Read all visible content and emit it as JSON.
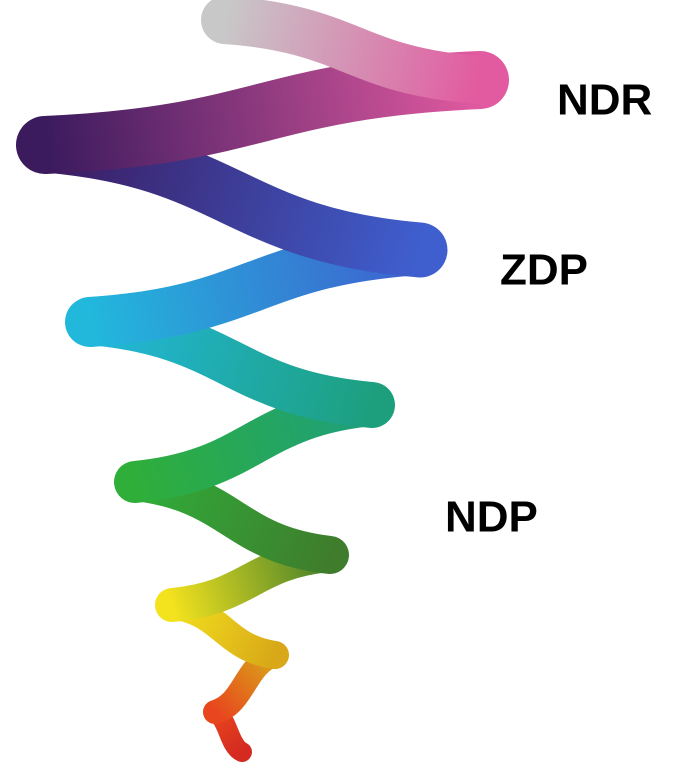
{
  "labels": [
    "NDR",
    "ZDP",
    "NDP"
  ]
}
